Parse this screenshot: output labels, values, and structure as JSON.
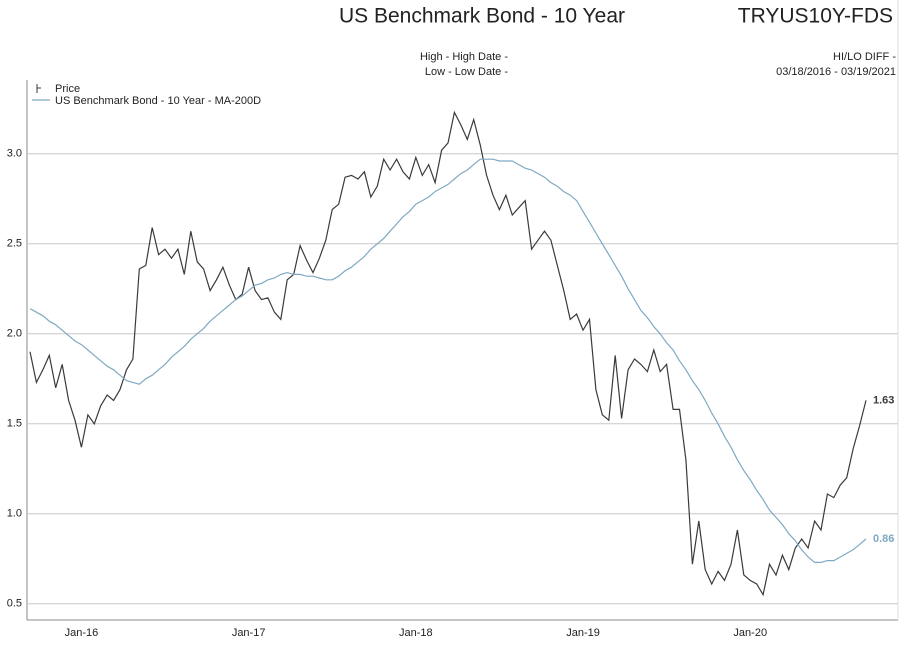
{
  "chart_data": {
    "type": "line",
    "title": "US Benchmark Bond - 10 Year",
    "symbol": "TRYUS10Y-FDS",
    "high_label": "High - High Date -",
    "low_label": "Low - Low Date -",
    "hilo_label": "HI/LO DIFF -",
    "date_range": "03/18/2016 - 03/19/2021",
    "categories": [
      null,
      null,
      null,
      null,
      null,
      null,
      null,
      null,
      "Jan-16",
      null,
      null,
      null,
      null,
      null,
      null,
      null,
      null,
      null,
      null,
      null,
      null,
      null,
      null,
      null,
      null,
      null,
      null,
      null,
      null,
      null,
      null,
      null,
      null,
      null,
      "Jan-17",
      null,
      null,
      null,
      null,
      null,
      null,
      null,
      null,
      null,
      null,
      null,
      null,
      null,
      null,
      null,
      null,
      null,
      null,
      null,
      null,
      null,
      null,
      null,
      null,
      null,
      "Jan-18",
      null,
      null,
      null,
      null,
      null,
      null,
      null,
      null,
      null,
      null,
      null,
      null,
      null,
      null,
      null,
      null,
      null,
      null,
      null,
      null,
      null,
      null,
      null,
      null,
      null,
      "Jan-19",
      null,
      null,
      null,
      null,
      null,
      null,
      null,
      null,
      null,
      null,
      null,
      null,
      null,
      null,
      null,
      null,
      null,
      null,
      null,
      null,
      null,
      null,
      null,
      null,
      null,
      "Jan-20",
      null,
      null,
      null,
      null,
      null,
      null,
      null,
      null,
      null,
      null,
      null,
      null,
      null,
      null,
      null,
      null,
      null,
      null
    ],
    "series": [
      {
        "name": "Price",
        "color": "#3a3a3a",
        "values": [
          1.9,
          1.73,
          1.8,
          1.88,
          1.7,
          1.83,
          1.63,
          1.52,
          1.37,
          1.55,
          1.5,
          1.6,
          1.66,
          1.63,
          1.69,
          1.8,
          1.86,
          2.36,
          2.38,
          2.59,
          2.44,
          2.47,
          2.42,
          2.47,
          2.33,
          2.57,
          2.4,
          2.36,
          2.24,
          2.3,
          2.37,
          2.27,
          2.19,
          2.22,
          2.37,
          2.24,
          2.19,
          2.2,
          2.12,
          2.08,
          2.3,
          2.33,
          2.49,
          2.41,
          2.34,
          2.42,
          2.52,
          2.69,
          2.72,
          2.87,
          2.88,
          2.86,
          2.9,
          2.76,
          2.82,
          2.97,
          2.91,
          2.97,
          2.9,
          2.86,
          2.98,
          2.88,
          2.94,
          2.84,
          3.02,
          3.06,
          3.23,
          3.16,
          3.08,
          3.19,
          3.05,
          2.88,
          2.77,
          2.69,
          2.77,
          2.66,
          2.7,
          2.74,
          2.47,
          2.52,
          2.57,
          2.52,
          2.38,
          2.24,
          2.08,
          2.11,
          2.02,
          2.08,
          1.69,
          1.55,
          1.52,
          1.88,
          1.53,
          1.8,
          1.86,
          1.83,
          1.79,
          1.91,
          1.79,
          1.83,
          1.58,
          1.58,
          1.3,
          0.72,
          0.96,
          0.69,
          0.61,
          0.68,
          0.63,
          0.72,
          0.91,
          0.66,
          0.63,
          0.61,
          0.55,
          0.72,
          0.66,
          0.77,
          0.69,
          0.81,
          0.86,
          0.81,
          0.96,
          0.91,
          1.11,
          1.09,
          1.16,
          1.2,
          1.36,
          1.49,
          1.63
        ]
      },
      {
        "name": "US Benchmark Bond - 10 Year - MA-200D",
        "color": "#7fa9c2",
        "values": [
          2.14,
          2.12,
          2.1,
          2.07,
          2.05,
          2.02,
          1.99,
          1.96,
          1.94,
          1.91,
          1.88,
          1.85,
          1.82,
          1.8,
          1.77,
          1.74,
          1.73,
          1.72,
          1.75,
          1.77,
          1.8,
          1.83,
          1.87,
          1.9,
          1.93,
          1.97,
          2.0,
          2.03,
          2.07,
          2.1,
          2.13,
          2.16,
          2.19,
          2.21,
          2.24,
          2.27,
          2.28,
          2.3,
          2.31,
          2.33,
          2.34,
          2.33,
          2.33,
          2.32,
          2.32,
          2.31,
          2.3,
          2.3,
          2.32,
          2.35,
          2.37,
          2.4,
          2.43,
          2.47,
          2.5,
          2.53,
          2.57,
          2.61,
          2.65,
          2.68,
          2.72,
          2.74,
          2.76,
          2.79,
          2.81,
          2.83,
          2.86,
          2.89,
          2.91,
          2.94,
          2.97,
          2.97,
          2.97,
          2.96,
          2.96,
          2.96,
          2.94,
          2.92,
          2.91,
          2.89,
          2.87,
          2.84,
          2.82,
          2.79,
          2.77,
          2.74,
          2.68,
          2.62,
          2.56,
          2.5,
          2.44,
          2.38,
          2.32,
          2.25,
          2.19,
          2.13,
          2.09,
          2.04,
          2.0,
          1.95,
          1.91,
          1.85,
          1.8,
          1.74,
          1.69,
          1.63,
          1.56,
          1.5,
          1.43,
          1.37,
          1.3,
          1.24,
          1.19,
          1.13,
          1.08,
          1.02,
          0.98,
          0.94,
          0.89,
          0.85,
          0.8,
          0.76,
          0.73,
          0.73,
          0.74,
          0.74,
          0.76,
          0.78,
          0.8,
          0.83,
          0.86
        ]
      }
    ],
    "ylim": [
      0.41,
      3.41
    ],
    "yticks": [
      {
        "value": 0.5,
        "label": "0.5"
      },
      {
        "value": 1,
        "label": "1.0"
      },
      {
        "value": 1.5,
        "label": "1.5"
      },
      {
        "value": 2,
        "label": "2.0"
      },
      {
        "value": 2.5,
        "label": "2.5"
      },
      {
        "value": 3,
        "label": "3.0"
      }
    ],
    "grid": true
  }
}
